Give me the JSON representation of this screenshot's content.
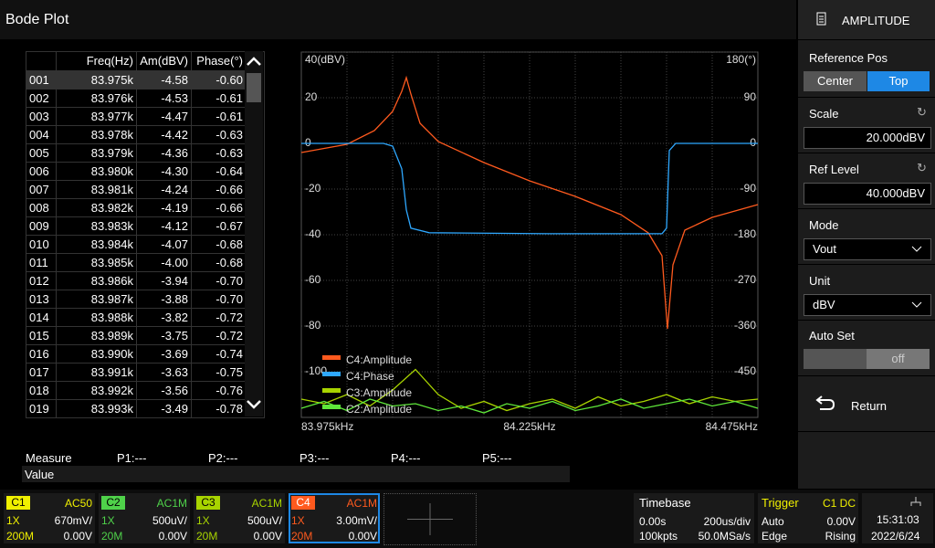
{
  "header": {
    "title": "Bode Plot",
    "menu_title": "AMPLITUDE"
  },
  "table": {
    "columns": [
      "Freq(Hz)",
      "Am(dBV)",
      "Phase(°)"
    ],
    "rows": [
      [
        "001",
        "83.975k",
        "-4.58",
        "-0.60"
      ],
      [
        "002",
        "83.976k",
        "-4.53",
        "-0.61"
      ],
      [
        "003",
        "83.977k",
        "-4.47",
        "-0.61"
      ],
      [
        "004",
        "83.978k",
        "-4.42",
        "-0.63"
      ],
      [
        "005",
        "83.979k",
        "-4.36",
        "-0.63"
      ],
      [
        "006",
        "83.980k",
        "-4.30",
        "-0.64"
      ],
      [
        "007",
        "83.981k",
        "-4.24",
        "-0.66"
      ],
      [
        "008",
        "83.982k",
        "-4.19",
        "-0.66"
      ],
      [
        "009",
        "83.983k",
        "-4.12",
        "-0.67"
      ],
      [
        "010",
        "83.984k",
        "-4.07",
        "-0.68"
      ],
      [
        "011",
        "83.985k",
        "-4.00",
        "-0.68"
      ],
      [
        "012",
        "83.986k",
        "-3.94",
        "-0.70"
      ],
      [
        "013",
        "83.987k",
        "-3.88",
        "-0.70"
      ],
      [
        "014",
        "83.988k",
        "-3.82",
        "-0.72"
      ],
      [
        "015",
        "83.989k",
        "-3.75",
        "-0.72"
      ],
      [
        "016",
        "83.990k",
        "-3.69",
        "-0.74"
      ],
      [
        "017",
        "83.991k",
        "-3.63",
        "-0.75"
      ],
      [
        "018",
        "83.992k",
        "-3.56",
        "-0.76"
      ],
      [
        "019",
        "83.993k",
        "-3.49",
        "-0.78"
      ]
    ]
  },
  "chart_data": {
    "type": "line",
    "grid": true,
    "legend": "bottom-left",
    "xlim": [
      83.975,
      84.475
    ],
    "xticks": [
      {
        "value": 83.975,
        "label": "83.975kHz"
      },
      {
        "value": 84.225,
        "label": "84.225kHz"
      },
      {
        "value": 84.475,
        "label": "84.475kHz"
      }
    ],
    "xgrid": [
      84.025,
      84.075,
      84.125,
      84.175,
      84.225,
      84.275,
      84.325,
      84.375,
      84.425
    ],
    "ylim": [
      -120,
      40
    ],
    "yticks": [
      {
        "value": 40,
        "label": "40(dBV)"
      },
      20,
      0,
      -20,
      -40,
      -60,
      -80,
      -100
    ],
    "y2lim": [
      -540,
      180
    ],
    "y2ticks": [
      {
        "value": 180,
        "label": "180(°)"
      },
      90,
      0,
      -90,
      -180,
      -270,
      -360,
      -450
    ],
    "series": [
      {
        "name": "C4:Amplitude",
        "color": "#ff5a1e",
        "x": [
          83.975,
          84.025,
          84.055,
          84.075,
          84.085,
          84.09,
          84.095,
          84.105,
          84.125,
          84.175,
          84.225,
          84.275,
          84.325,
          84.355,
          84.37,
          84.376,
          84.382,
          84.395,
          84.425,
          84.475
        ],
        "values": [
          -4,
          -0.4,
          5.6,
          14,
          22.8,
          28.8,
          21.6,
          8.8,
          0.8,
          -8.4,
          -16.4,
          -23.2,
          -31.2,
          -39.2,
          -49.2,
          -81.2,
          -53.2,
          -38,
          -32.4,
          -26.8
        ]
      },
      {
        "name": "C4:Phase",
        "color": "#2ea8ff",
        "axis": "y2",
        "x": [
          83.975,
          84.065,
          84.075,
          84.085,
          84.09,
          84.095,
          84.115,
          84.245,
          84.37,
          84.375,
          84.378,
          84.385,
          84.475
        ],
        "values": [
          0,
          0,
          -5.4,
          -50,
          -131,
          -167,
          -176,
          -178,
          -178,
          -167,
          -14,
          0,
          0
        ]
      },
      {
        "name": "C3:Amplitude",
        "color": "#a8d400",
        "x": [
          83.975,
          84.0,
          84.025,
          84.05,
          84.075,
          84.1,
          84.125,
          84.15,
          84.175,
          84.2,
          84.225,
          84.25,
          84.275,
          84.3,
          84.325,
          84.35,
          84.375,
          84.4,
          84.425,
          84.45,
          84.475
        ],
        "values": [
          -112,
          -114,
          -110,
          -115,
          -108,
          -99,
          -110,
          -116,
          -113,
          -117,
          -114,
          -112,
          -116,
          -111,
          -115,
          -113,
          -110,
          -114,
          -111,
          -113,
          -112
        ]
      },
      {
        "name": "C2:Amplitude",
        "color": "#5fe83a",
        "x": [
          83.975,
          84.0,
          84.025,
          84.05,
          84.075,
          84.1,
          84.125,
          84.15,
          84.175,
          84.2,
          84.225,
          84.25,
          84.275,
          84.3,
          84.325,
          84.35,
          84.375,
          84.4,
          84.425,
          84.45,
          84.475
        ],
        "values": [
          -116,
          -113,
          -117,
          -112,
          -115,
          -114,
          -117,
          -115,
          -118,
          -114,
          -116,
          -113,
          -117,
          -115,
          -112,
          -116,
          -114,
          -112,
          -115,
          -113,
          -116
        ]
      }
    ]
  },
  "panel": {
    "reference_pos": "Reference Pos",
    "center": "Center",
    "top": "Top",
    "scale": "Scale",
    "scale_value": "20.000dBV",
    "ref_level": "Ref Level",
    "ref_level_value": "40.000dBV",
    "mode": "Mode",
    "mode_value": "Vout",
    "unit": "Unit",
    "unit_value": "dBV",
    "auto_set": "Auto Set",
    "auto_set_value": "off",
    "return": "Return"
  },
  "measure": {
    "label": "Measure",
    "points": [
      "P1:---",
      "P2:---",
      "P3:---",
      "P4:---",
      "P5:---"
    ],
    "value": "Value"
  },
  "channels": [
    {
      "name": "C1",
      "coupling": "AC50",
      "probe": "1X",
      "scale": "670mV/",
      "bw": "200M",
      "offset": "0.00V",
      "color": "#f0f000"
    },
    {
      "name": "C2",
      "coupling": "AC1M",
      "probe": "1X",
      "scale": "500uV/",
      "bw": "20M",
      "offset": "0.00V",
      "color": "#4fd24a"
    },
    {
      "name": "C3",
      "coupling": "AC1M",
      "probe": "1X",
      "scale": "500uV/",
      "bw": "20M",
      "offset": "0.00V",
      "color": "#a8d400"
    },
    {
      "name": "C4",
      "coupling": "AC1M",
      "probe": "1X",
      "scale": "3.00mV/",
      "bw": "20M",
      "offset": "0.00V",
      "color": "#ff5a1e"
    }
  ],
  "timebase": {
    "label": "Timebase",
    "delay": "0.00s",
    "scale": "200us/div",
    "points": "100kpts",
    "rate": "50.0MSa/s"
  },
  "trigger": {
    "label": "Trigger",
    "source": "C1 DC",
    "mode": "Auto",
    "level": "0.00V",
    "type": "Edge",
    "slope": "Rising"
  },
  "clock": {
    "time": "15:31:03",
    "date": "2022/6/24"
  }
}
